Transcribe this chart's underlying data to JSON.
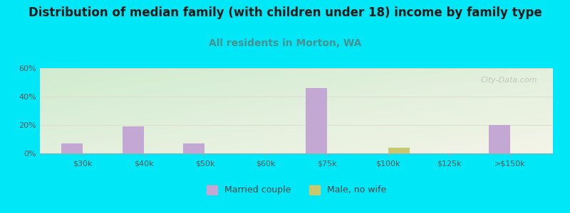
{
  "title": "Distribution of median family (with children under 18) income by family type",
  "subtitle": "All residents in Morton, WA",
  "categories": [
    "$30k",
    "$40k",
    "$50k",
    "$60k",
    "$75k",
    "$100k",
    "$125k",
    ">$150k"
  ],
  "married_couple": [
    7,
    19,
    7,
    0,
    46,
    0,
    0,
    20
  ],
  "male_no_wife": [
    0,
    0,
    0,
    0,
    0,
    4,
    0,
    0
  ],
  "bar_color_married": "#c4a8d4",
  "bar_color_male": "#c8c870",
  "background_outer": "#00e8f8",
  "grad_top_left": "#d0ecd0",
  "grad_bottom_right": "#f4f4e8",
  "ylim": [
    0,
    60
  ],
  "yticks": [
    0,
    20,
    40,
    60
  ],
  "ytick_labels": [
    "0%",
    "20%",
    "40%",
    "60%"
  ],
  "title_fontsize": 12,
  "subtitle_fontsize": 10,
  "subtitle_color": "#4a9090",
  "watermark": "City-Data.com",
  "bar_width": 0.35,
  "grid_color": "#ddddcc",
  "tick_color": "#888888",
  "label_color": "#555555"
}
